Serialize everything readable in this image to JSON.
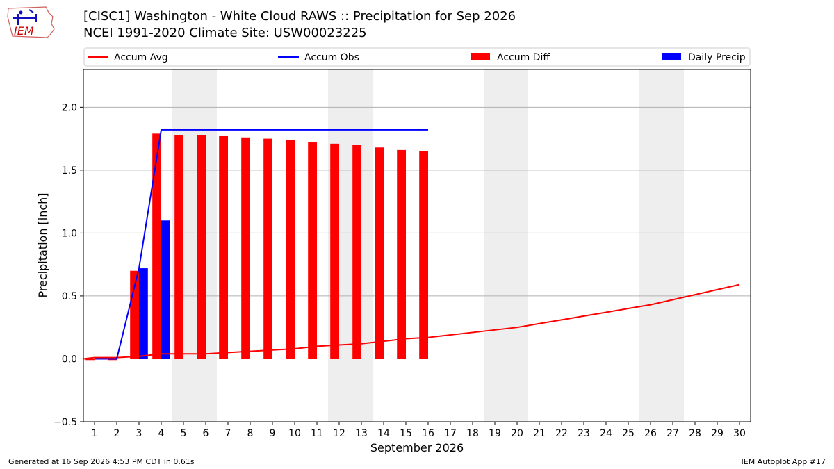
{
  "header": {
    "title_line1": "[CISC1] Washington - White Cloud RAWS :: Precipitation for Sep 2026",
    "title_line2": "NCEI 1991-2020 Climate Site: USW00023225",
    "logo_text": "IEM"
  },
  "footer": {
    "generated": "Generated at 16 Sep 2026 4:53 PM CDT in 0.61s",
    "app": "IEM Autoplot App #17"
  },
  "chart_data": {
    "type": "bar",
    "xlabel": "September 2026",
    "ylabel": "Precipitation [inch]",
    "xlim": [
      0.5,
      30.5
    ],
    "ylim": [
      -0.5,
      2.3
    ],
    "yticks": [
      -0.5,
      0.0,
      0.5,
      1.0,
      1.5,
      2.0
    ],
    "ytick_labels": [
      "−0.5",
      "0.0",
      "0.5",
      "1.0",
      "1.5",
      "2.0"
    ],
    "x": [
      1,
      2,
      3,
      4,
      5,
      6,
      7,
      8,
      9,
      10,
      11,
      12,
      13,
      14,
      15,
      16,
      17,
      18,
      19,
      20,
      21,
      22,
      23,
      24,
      25,
      26,
      27,
      28,
      29,
      30
    ],
    "weekend_shading": [
      [
        4.5,
        6.5
      ],
      [
        11.5,
        13.5
      ],
      [
        18.5,
        20.5
      ],
      [
        25.5,
        27.5
      ]
    ],
    "grid": "horizontal",
    "legend_position": "top",
    "series": [
      {
        "name": "Accum Avg",
        "kind": "line",
        "color": "#ff0000",
        "x": [
          0.5,
          1,
          2,
          3,
          4,
          5,
          6,
          7,
          8,
          9,
          10,
          11,
          12,
          13,
          14,
          15,
          16,
          17,
          18,
          19,
          20,
          21,
          22,
          23,
          24,
          25,
          26,
          27,
          28,
          29,
          30
        ],
        "values": [
          0.0,
          0.01,
          0.01,
          0.02,
          0.04,
          0.04,
          0.04,
          0.05,
          0.06,
          0.07,
          0.08,
          0.1,
          0.11,
          0.12,
          0.14,
          0.16,
          0.17,
          0.19,
          0.21,
          0.23,
          0.25,
          0.28,
          0.31,
          0.34,
          0.37,
          0.4,
          0.43,
          0.47,
          0.51,
          0.55,
          0.59
        ]
      },
      {
        "name": "Accum Obs",
        "kind": "line",
        "color": "#0000ff",
        "x": [
          1,
          2,
          3,
          4,
          5,
          6,
          7,
          8,
          9,
          10,
          11,
          12,
          13,
          14,
          15,
          16
        ],
        "values": [
          0.0,
          0.0,
          0.72,
          1.82,
          1.82,
          1.82,
          1.82,
          1.82,
          1.82,
          1.82,
          1.82,
          1.82,
          1.82,
          1.82,
          1.82,
          1.82
        ]
      },
      {
        "name": "Accum Diff",
        "kind": "bar",
        "color": "#ff0000",
        "x": [
          1,
          2,
          3,
          4,
          5,
          6,
          7,
          8,
          9,
          10,
          11,
          12,
          13,
          14,
          15,
          16
        ],
        "values": [
          -0.01,
          -0.01,
          0.7,
          1.79,
          1.78,
          1.78,
          1.77,
          1.76,
          1.75,
          1.74,
          1.72,
          1.71,
          1.7,
          1.68,
          1.66,
          1.65
        ]
      },
      {
        "name": "Daily Precip",
        "kind": "bar",
        "color": "#0000ff",
        "x": [
          1,
          2,
          3,
          4,
          5,
          6,
          7,
          8,
          9,
          10,
          11,
          12,
          13,
          14,
          15,
          16
        ],
        "values": [
          0.0,
          0.0,
          0.72,
          1.1,
          0,
          0,
          0,
          0,
          0,
          0,
          0,
          0,
          0,
          0,
          0,
          0
        ]
      }
    ]
  }
}
